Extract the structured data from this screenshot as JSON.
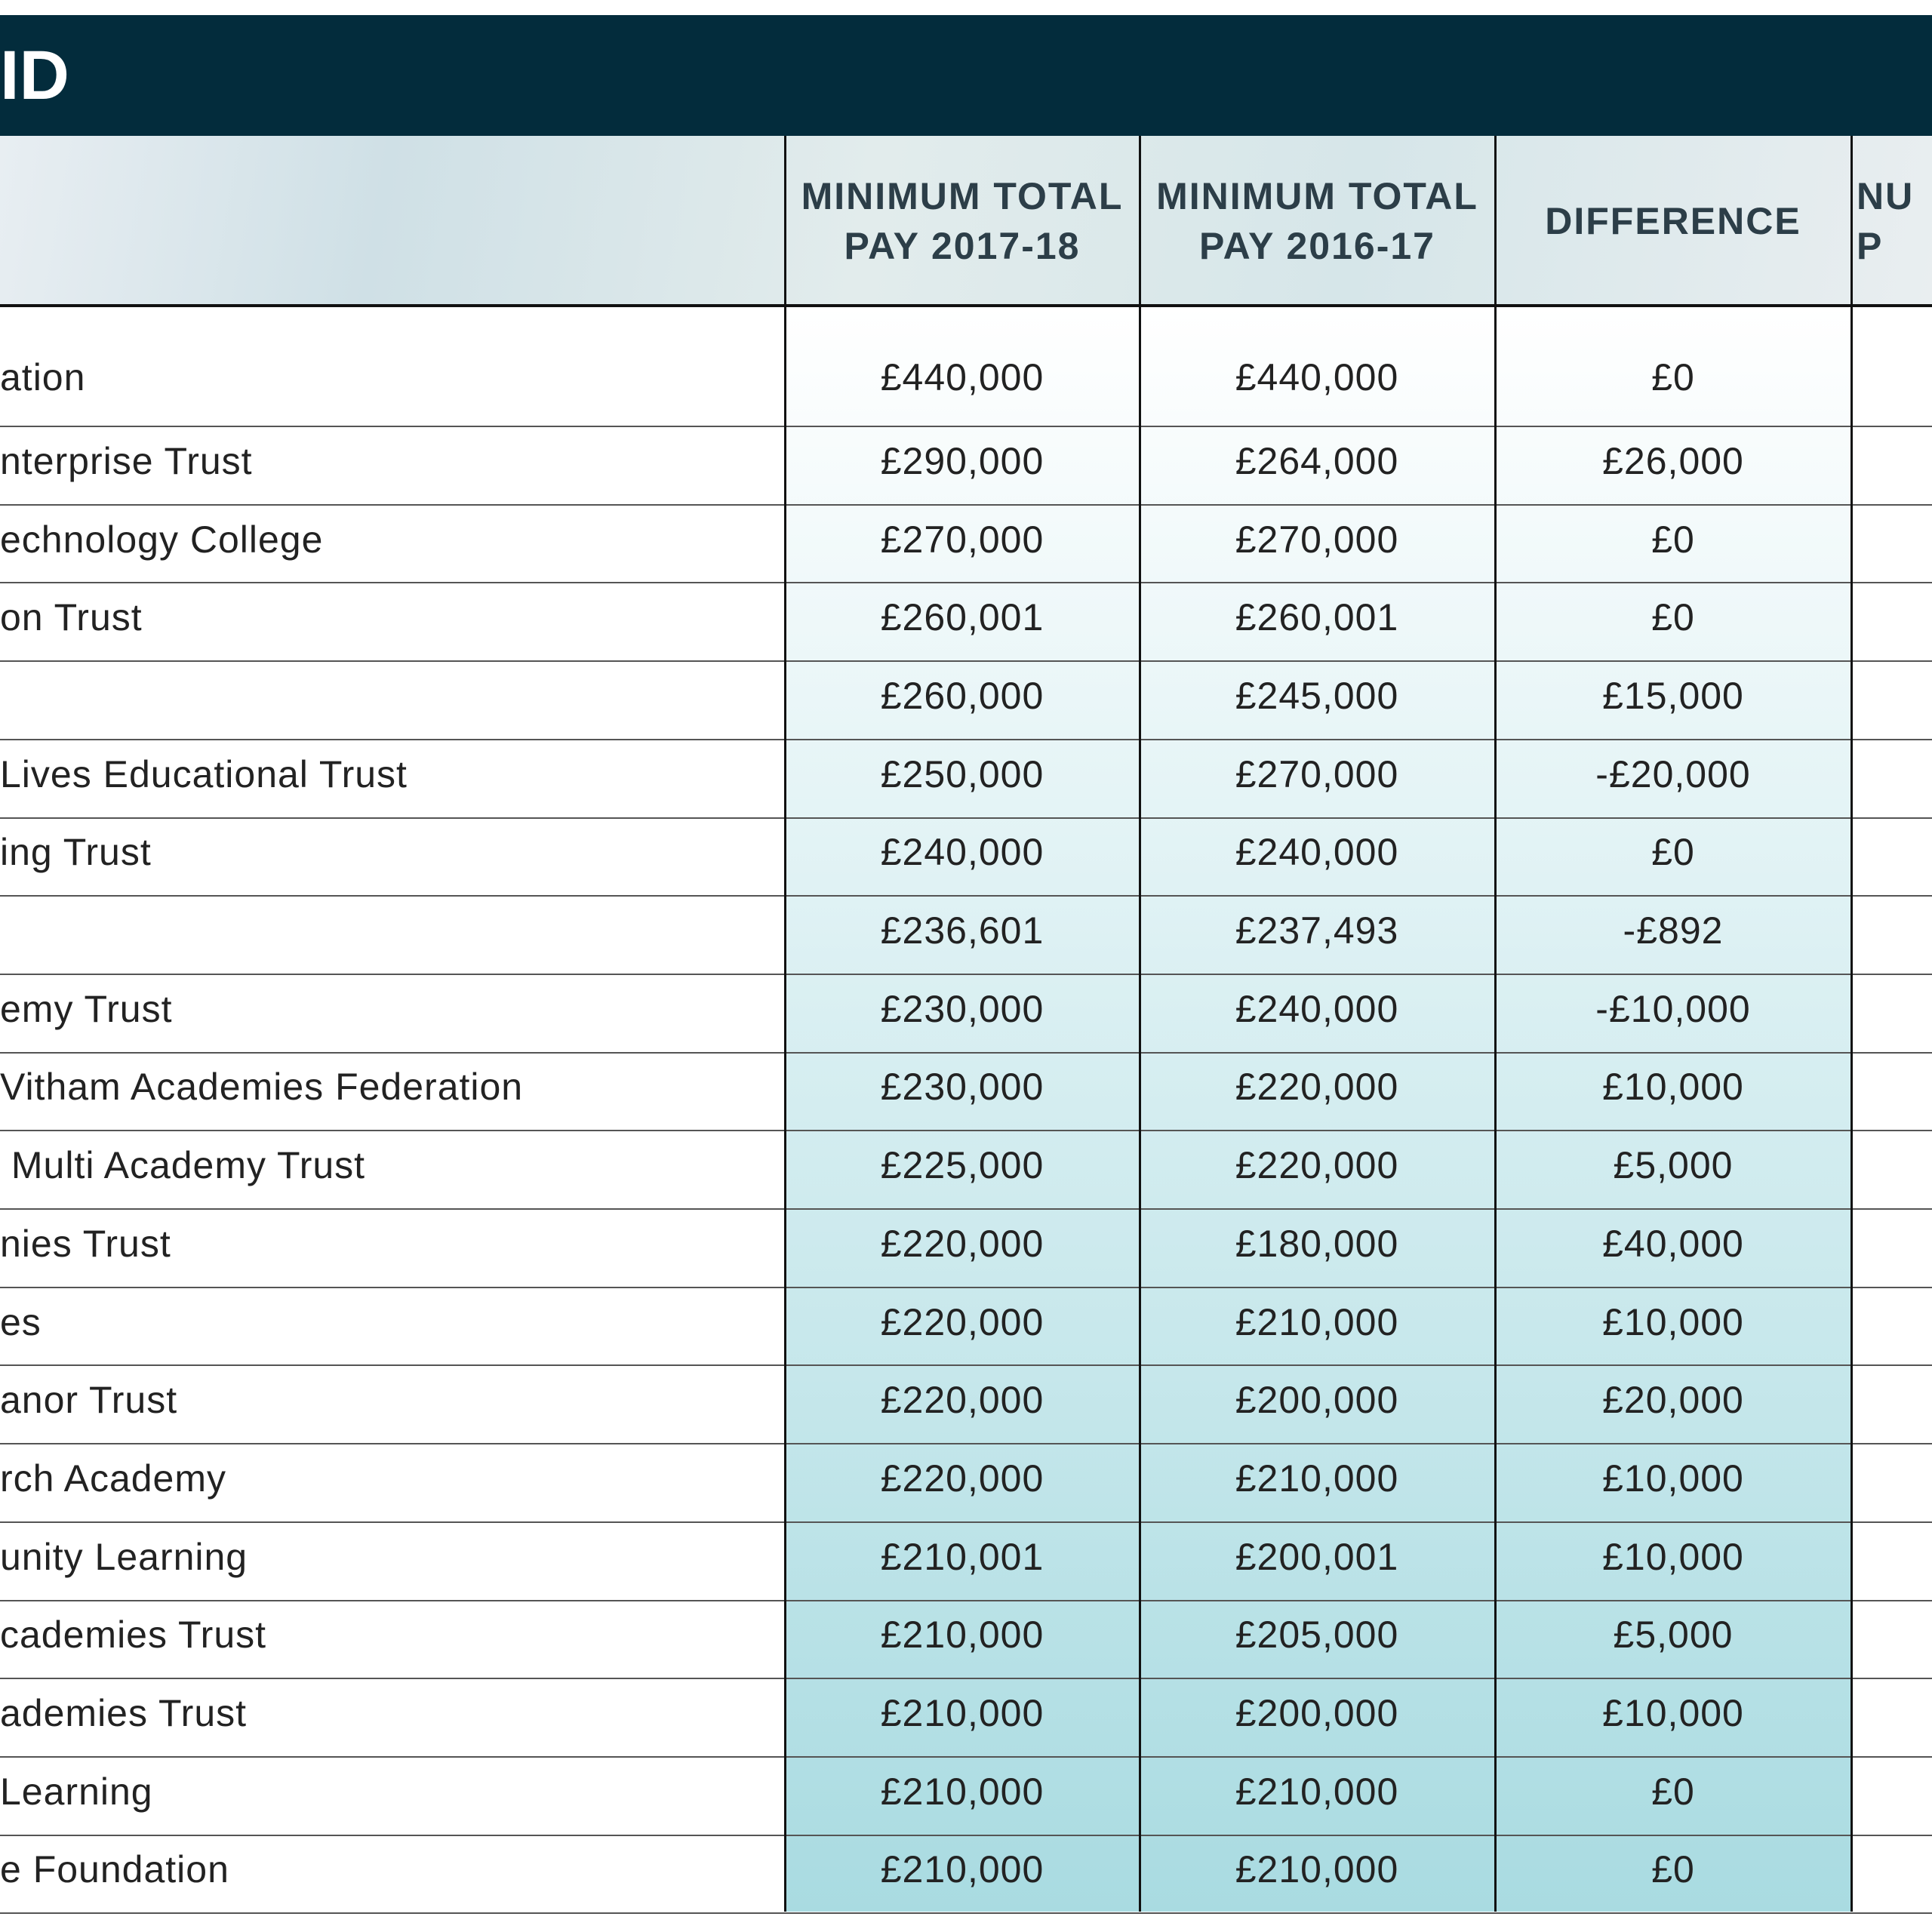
{
  "header": {
    "title": "ID",
    "columns": [
      [
        "MINIMUM TOTAL",
        "PAY 2017-18"
      ],
      [
        "MINIMUM TOTAL",
        "PAY 2016-17"
      ],
      [
        "DIFFERENCE"
      ],
      [
        "NU",
        "P"
      ]
    ]
  },
  "table": {
    "rows": [
      [
        "ation",
        "£440,000",
        "£440,000",
        "£0"
      ],
      [
        "nterprise Trust",
        "£290,000",
        "£264,000",
        "£26,000"
      ],
      [
        "echnology College",
        "£270,000",
        "£270,000",
        "£0"
      ],
      [
        "on Trust",
        "£260,001",
        "£260,001",
        "£0"
      ],
      [
        null,
        "£260,000",
        "£245,000",
        "£15,000"
      ],
      [
        "Lives Educational Trust",
        "£250,000",
        "£270,000",
        "-£20,000"
      ],
      [
        "ing Trust",
        "£240,000",
        "£240,000",
        "£0"
      ],
      [
        null,
        "£236,601",
        "£237,493",
        "-£892"
      ],
      [
        "emy Trust",
        "£230,000",
        "£240,000",
        "-£10,000"
      ],
      [
        "Vitham Academies Federation",
        "£230,000",
        "£220,000",
        "£10,000"
      ],
      [
        " Multi Academy Trust",
        "£225,000",
        "£220,000",
        "£5,000"
      ],
      [
        "nies Trust",
        "£220,000",
        "£180,000",
        "£40,000"
      ],
      [
        "es",
        "£220,000",
        "£210,000",
        "£10,000"
      ],
      [
        "anor Trust",
        "£220,000",
        "£200,000",
        "£20,000"
      ],
      [
        "rch Academy",
        "£220,000",
        "£210,000",
        "£10,000"
      ],
      [
        "unity Learning",
        "£210,001",
        "£200,001",
        "£10,000"
      ],
      [
        "cademies Trust",
        "£210,000",
        "£205,000",
        "£5,000"
      ],
      [
        "ademies Trust",
        "£210,000",
        "£200,000",
        "£10,000"
      ],
      [
        "Learning",
        "£210,000",
        "£210,000",
        "£0"
      ],
      [
        "e Foundation",
        "£210,000",
        "£210,000",
        "£0"
      ]
    ]
  }
}
